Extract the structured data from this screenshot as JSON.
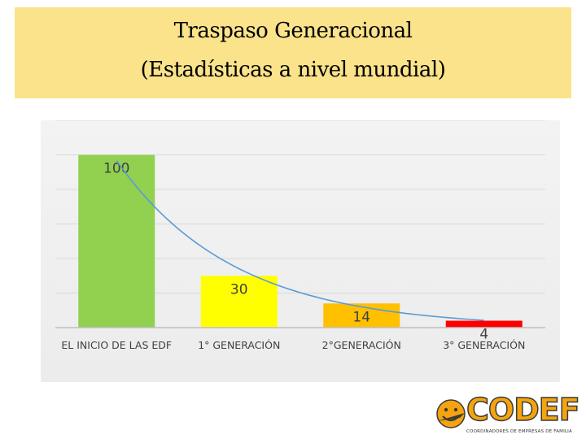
{
  "slide": {
    "title_line1": "Traspaso  Generacional",
    "title_line2": "(Estadísticas  a  nivel  mundial)",
    "title_bg": "#fbe38b"
  },
  "chart_data": {
    "type": "bar",
    "categories": [
      "EL INICIO DE LAS EDF",
      "1° GENERACIÓN",
      "2°GENERACIÓN",
      "3° GENERACIÓN"
    ],
    "values": [
      100,
      30,
      14,
      4
    ],
    "colors": [
      "#92d050",
      "#ffff00",
      "#ffc000",
      "#ff0000"
    ],
    "trendline": {
      "type": "exponential",
      "color": "#5b9bd5"
    },
    "ylim": [
      0,
      120
    ],
    "grid": true,
    "title": "",
    "xlabel": "",
    "ylabel": ""
  },
  "logo": {
    "word": "CODEF",
    "tagline": "COORDINADORES DE EMPRESAS DE FAMILIA",
    "icon": "smiley-plane-logo-icon"
  }
}
